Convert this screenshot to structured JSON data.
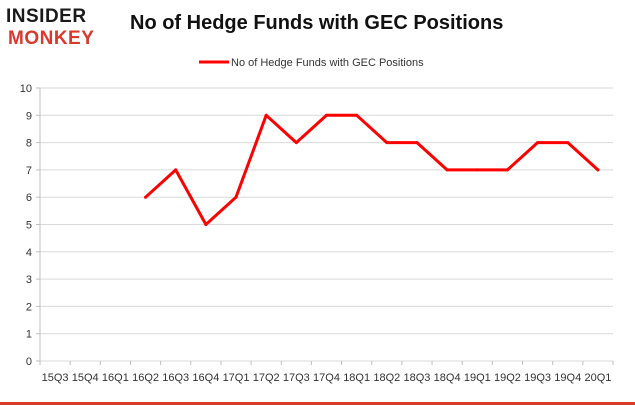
{
  "logo": {
    "line1": "INSIDER",
    "line2": "MONKEY"
  },
  "chart_data": {
    "type": "line",
    "title": "No of Hedge Funds with GEC Positions",
    "xlabel": "",
    "ylabel": "",
    "categories": [
      "15Q3",
      "15Q4",
      "16Q1",
      "16Q2",
      "16Q3",
      "16Q4",
      "17Q1",
      "17Q2",
      "17Q3",
      "17Q4",
      "18Q1",
      "18Q2",
      "18Q3",
      "18Q4",
      "19Q1",
      "19Q2",
      "19Q3",
      "19Q4",
      "20Q1"
    ],
    "series": [
      {
        "name": "No of Hedge Funds with GEC Positions",
        "values": [
          null,
          null,
          null,
          6,
          7,
          5,
          6,
          9,
          8,
          9,
          9,
          8,
          8,
          7,
          7,
          7,
          8,
          8,
          7
        ]
      }
    ],
    "ylim": [
      0,
      10
    ],
    "yticks": [
      0,
      1,
      2,
      3,
      4,
      5,
      6,
      7,
      8,
      9,
      10
    ],
    "grid": true,
    "legend": "top",
    "colors": {
      "line": "#ff0000",
      "grid": "#d9d9d9",
      "axis": "#bfbfbf"
    }
  }
}
